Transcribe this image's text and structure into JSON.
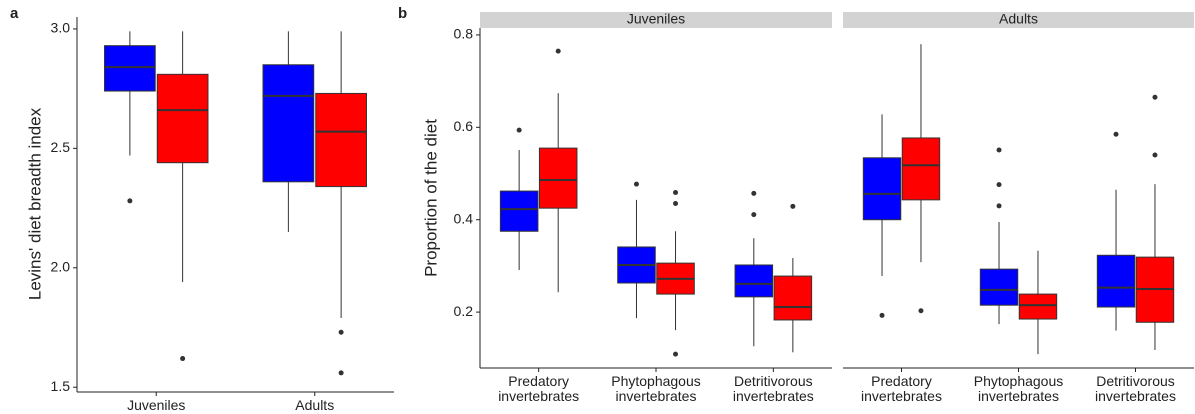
{
  "chart_data": [
    {
      "type": "box",
      "panel_label": "a",
      "ylabel": "Levins' diet breadth index",
      "categories": [
        "Juveniles",
        "Adults"
      ],
      "ylim": [
        1.48,
        3.05
      ],
      "yticks": [
        1.5,
        {
          "value": 2,
          "label": "2.0"
        },
        2.5,
        {
          "value": 3,
          "label": "3.0"
        }
      ],
      "series": [
        {
          "color": "#0000ff",
          "values": [
            {
              "low": 2.47,
              "q1": 2.74,
              "median": 2.84,
              "q3": 2.93,
              "high": 2.99,
              "outliers": [
                2.28
              ]
            },
            {
              "low": 2.15,
              "q1": 2.36,
              "median": 2.72,
              "q3": 2.85,
              "high": 2.99,
              "outliers": []
            }
          ]
        },
        {
          "color": "#ff0000",
          "values": [
            {
              "low": 1.94,
              "q1": 2.44,
              "median": 2.66,
              "q3": 2.81,
              "high": 2.99,
              "outliers": [
                1.62
              ]
            },
            {
              "low": 1.79,
              "q1": 2.34,
              "median": 2.57,
              "q3": 2.73,
              "high": 2.99,
              "outliers": [
                1.73,
                1.56
              ]
            }
          ]
        }
      ]
    },
    {
      "type": "box",
      "panel_label": "b",
      "ylabel": "Proportion of the diet",
      "categories": [
        "Predatory invertebrates",
        "Phytophagous invertebrates",
        "Detritivorous invertebrates"
      ],
      "ylim": [
        0.079,
        0.815
      ],
      "yticks": [
        0.2,
        0.4,
        0.6,
        0.8
      ],
      "facets": [
        {
          "title": "Juveniles",
          "series": [
            {
              "color": "#0000ff",
              "values": [
                {
                  "low": 0.291,
                  "q1": 0.375,
                  "median": 0.423,
                  "q3": 0.462,
                  "high": 0.551,
                  "outliers": [
                    0.594
                  ]
                },
                {
                  "low": 0.187,
                  "q1": 0.263,
                  "median": 0.302,
                  "q3": 0.341,
                  "high": 0.443,
                  "outliers": [
                    0.477
                  ]
                },
                {
                  "low": 0.126,
                  "q1": 0.233,
                  "median": 0.261,
                  "q3": 0.302,
                  "high": 0.36,
                  "outliers": [
                    0.457,
                    0.411
                  ]
                }
              ]
            },
            {
              "color": "#ff0000",
              "values": [
                {
                  "low": 0.243,
                  "q1": 0.425,
                  "median": 0.486,
                  "q3": 0.555,
                  "high": 0.674,
                  "outliers": [
                    0.765
                  ]
                },
                {
                  "low": 0.161,
                  "q1": 0.239,
                  "median": 0.272,
                  "q3": 0.306,
                  "high": 0.375,
                  "outliers": [
                    0.459,
                    0.435,
                    0.109
                  ]
                },
                {
                  "low": 0.113,
                  "q1": 0.183,
                  "median": 0.211,
                  "q3": 0.278,
                  "high": 0.317,
                  "outliers": [
                    0.429
                  ]
                }
              ]
            }
          ]
        },
        {
          "title": "Adults",
          "series": [
            {
              "color": "#0000ff",
              "values": [
                {
                  "low": 0.278,
                  "q1": 0.4,
                  "median": 0.456,
                  "q3": 0.534,
                  "high": 0.628,
                  "outliers": [
                    0.193
                  ]
                },
                {
                  "low": 0.174,
                  "q1": 0.215,
                  "median": 0.248,
                  "q3": 0.293,
                  "high": 0.395,
                  "outliers": [
                    0.551,
                    0.476,
                    0.43
                  ]
                },
                {
                  "low": 0.16,
                  "q1": 0.211,
                  "median": 0.253,
                  "q3": 0.323,
                  "high": 0.465,
                  "outliers": [
                    0.585
                  ]
                }
              ]
            },
            {
              "color": "#ff0000",
              "values": [
                {
                  "low": 0.308,
                  "q1": 0.443,
                  "median": 0.518,
                  "q3": 0.577,
                  "high": 0.78,
                  "outliers": [
                    0.203
                  ]
                },
                {
                  "low": 0.109,
                  "q1": 0.185,
                  "median": 0.215,
                  "q3": 0.239,
                  "high": 0.333,
                  "outliers": []
                },
                {
                  "low": 0.118,
                  "q1": 0.178,
                  "median": 0.25,
                  "q3": 0.319,
                  "high": 0.477,
                  "outliers": [
                    0.665,
                    0.54
                  ]
                }
              ]
            }
          ]
        }
      ]
    }
  ]
}
